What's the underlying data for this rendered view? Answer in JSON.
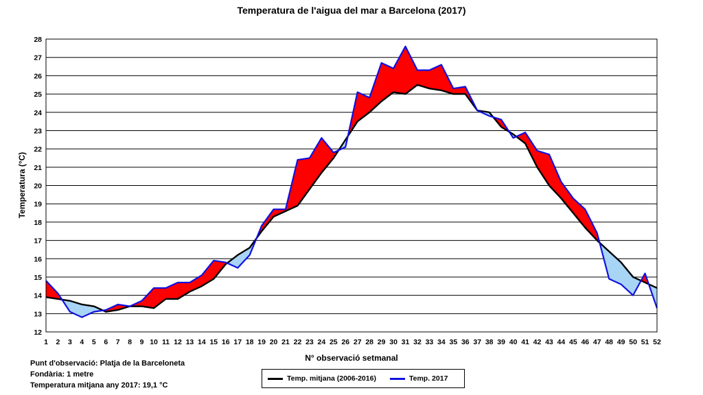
{
  "chart_data": {
    "type": "line",
    "title": "Temperatura de l'aigua del mar a Barcelona (2017)",
    "xlabel": "N° observació setmanal",
    "ylabel": "Temperatura (°C)",
    "x": [
      1,
      2,
      3,
      4,
      5,
      6,
      7,
      8,
      9,
      10,
      11,
      12,
      13,
      14,
      15,
      16,
      17,
      18,
      19,
      20,
      21,
      22,
      23,
      24,
      25,
      26,
      27,
      28,
      29,
      30,
      31,
      32,
      33,
      34,
      35,
      36,
      37,
      38,
      39,
      40,
      41,
      42,
      43,
      44,
      45,
      46,
      47,
      48,
      49,
      50,
      51,
      52
    ],
    "xlim": [
      1,
      52
    ],
    "ylim": [
      12,
      28
    ],
    "yticks": [
      12,
      13,
      14,
      15,
      16,
      17,
      18,
      19,
      20,
      21,
      22,
      23,
      24,
      25,
      26,
      27,
      28
    ],
    "grid": true,
    "fill_between": {
      "above_color": "#ff0000",
      "below_color": "#a8d4f5"
    },
    "series": [
      {
        "name": "Temp. mitjana (2006-2016)",
        "color": "#000000",
        "values": [
          13.9,
          13.8,
          13.7,
          13.5,
          13.4,
          13.1,
          13.2,
          13.4,
          13.4,
          13.3,
          13.8,
          13.8,
          14.2,
          14.5,
          14.9,
          15.7,
          16.2,
          16.6,
          17.5,
          18.3,
          18.6,
          18.9,
          19.8,
          20.7,
          21.5,
          22.5,
          23.5,
          24.0,
          24.6,
          25.1,
          25.0,
          25.5,
          25.3,
          25.2,
          25.0,
          25.0,
          24.1,
          24.0,
          23.2,
          22.8,
          22.3,
          21.0,
          20.0,
          19.3,
          18.5,
          17.7,
          17.0,
          16.4,
          15.8,
          15.0,
          14.7,
          14.4
        ]
      },
      {
        "name": "Temp. 2017",
        "color": "#1010e0",
        "values": [
          14.8,
          14.1,
          13.1,
          12.8,
          13.1,
          13.2,
          13.5,
          13.4,
          13.7,
          14.4,
          14.4,
          14.7,
          14.7,
          15.1,
          15.9,
          15.8,
          15.5,
          16.2,
          17.8,
          18.7,
          18.7,
          21.4,
          21.5,
          22.6,
          21.8,
          22.1,
          25.1,
          24.8,
          26.7,
          26.4,
          27.6,
          26.3,
          26.3,
          26.6,
          25.3,
          25.4,
          24.1,
          23.8,
          23.6,
          22.6,
          22.9,
          21.9,
          21.7,
          20.2,
          19.3,
          18.7,
          17.4,
          14.9,
          14.6,
          14.0,
          15.2,
          13.3
        ]
      }
    ]
  },
  "notes": {
    "location": "Punt d'observació: Platja de la Barceloneta",
    "depth": "Fondària: 1 metre",
    "annual_mean": "Temperatura mitjana any 2017: 19,1 °C"
  }
}
